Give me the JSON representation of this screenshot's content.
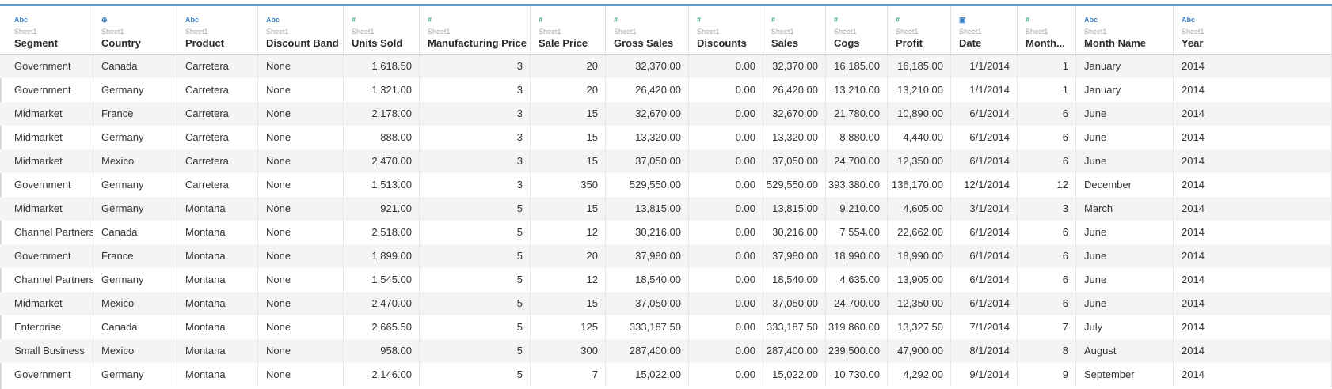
{
  "columns": [
    {
      "type": "abc",
      "icon": "abc-type-icon",
      "symbol": "Abc",
      "source": "Sheet1",
      "name": "Segment",
      "align": "l"
    },
    {
      "type": "geo",
      "icon": "globe-icon",
      "symbol": "⊕",
      "source": "Sheet1",
      "name": "Country",
      "align": "l"
    },
    {
      "type": "abc",
      "icon": "abc-type-icon",
      "symbol": "Abc",
      "source": "Sheet1",
      "name": "Product",
      "align": "l"
    },
    {
      "type": "abc",
      "icon": "abc-type-icon",
      "symbol": "Abc",
      "source": "Sheet1",
      "name": "Discount Band",
      "align": "l"
    },
    {
      "type": "num",
      "icon": "number-type-icon",
      "symbol": "#",
      "source": "Sheet1",
      "name": "Units Sold",
      "align": "r"
    },
    {
      "type": "num",
      "icon": "number-type-icon",
      "symbol": "#",
      "source": "Sheet1",
      "name": "Manufacturing Price",
      "align": "r"
    },
    {
      "type": "num",
      "icon": "number-type-icon",
      "symbol": "#",
      "source": "Sheet1",
      "name": "Sale Price",
      "align": "r"
    },
    {
      "type": "num",
      "icon": "number-type-icon",
      "symbol": "#",
      "source": "Sheet1",
      "name": "Gross Sales",
      "align": "r"
    },
    {
      "type": "num",
      "icon": "number-type-icon",
      "symbol": "#",
      "source": "Sheet1",
      "name": "Discounts",
      "align": "r"
    },
    {
      "type": "num",
      "icon": "number-type-icon",
      "symbol": "#",
      "source": "Sheet1",
      "name": "Sales",
      "align": "r"
    },
    {
      "type": "num",
      "icon": "number-type-icon",
      "symbol": "#",
      "source": "Sheet1",
      "name": "Cogs",
      "align": "r"
    },
    {
      "type": "num",
      "icon": "number-type-icon",
      "symbol": "#",
      "source": "Sheet1",
      "name": "Profit",
      "align": "r"
    },
    {
      "type": "date",
      "icon": "calendar-icon",
      "symbol": "▣",
      "source": "Sheet1",
      "name": "Date",
      "align": "r"
    },
    {
      "type": "num",
      "icon": "number-type-icon",
      "symbol": "#",
      "source": "Sheet1",
      "name": "Month...",
      "align": "r"
    },
    {
      "type": "abc",
      "icon": "abc-type-icon",
      "symbol": "Abc",
      "source": "Sheet1",
      "name": "Month Name",
      "align": "l"
    },
    {
      "type": "abc",
      "icon": "abc-type-icon",
      "symbol": "Abc",
      "source": "Sheet1",
      "name": "Year",
      "align": "l"
    }
  ],
  "rows": [
    [
      "Government",
      "Canada",
      "Carretera",
      "None",
      "1,618.50",
      "3",
      "20",
      "32,370.00",
      "0.00",
      "32,370.00",
      "16,185.00",
      "16,185.00",
      "1/1/2014",
      "1",
      "January",
      "2014"
    ],
    [
      "Government",
      "Germany",
      "Carretera",
      "None",
      "1,321.00",
      "3",
      "20",
      "26,420.00",
      "0.00",
      "26,420.00",
      "13,210.00",
      "13,210.00",
      "1/1/2014",
      "1",
      "January",
      "2014"
    ],
    [
      "Midmarket",
      "France",
      "Carretera",
      "None",
      "2,178.00",
      "3",
      "15",
      "32,670.00",
      "0.00",
      "32,670.00",
      "21,780.00",
      "10,890.00",
      "6/1/2014",
      "6",
      "June",
      "2014"
    ],
    [
      "Midmarket",
      "Germany",
      "Carretera",
      "None",
      "888.00",
      "3",
      "15",
      "13,320.00",
      "0.00",
      "13,320.00",
      "8,880.00",
      "4,440.00",
      "6/1/2014",
      "6",
      "June",
      "2014"
    ],
    [
      "Midmarket",
      "Mexico",
      "Carretera",
      "None",
      "2,470.00",
      "3",
      "15",
      "37,050.00",
      "0.00",
      "37,050.00",
      "24,700.00",
      "12,350.00",
      "6/1/2014",
      "6",
      "June",
      "2014"
    ],
    [
      "Government",
      "Germany",
      "Carretera",
      "None",
      "1,513.00",
      "3",
      "350",
      "529,550.00",
      "0.00",
      "529,550.00",
      "393,380.00",
      "136,170.00",
      "12/1/2014",
      "12",
      "December",
      "2014"
    ],
    [
      "Midmarket",
      "Germany",
      "Montana",
      "None",
      "921.00",
      "5",
      "15",
      "13,815.00",
      "0.00",
      "13,815.00",
      "9,210.00",
      "4,605.00",
      "3/1/2014",
      "3",
      "March",
      "2014"
    ],
    [
      "Channel Partners",
      "Canada",
      "Montana",
      "None",
      "2,518.00",
      "5",
      "12",
      "30,216.00",
      "0.00",
      "30,216.00",
      "7,554.00",
      "22,662.00",
      "6/1/2014",
      "6",
      "June",
      "2014"
    ],
    [
      "Government",
      "France",
      "Montana",
      "None",
      "1,899.00",
      "5",
      "20",
      "37,980.00",
      "0.00",
      "37,980.00",
      "18,990.00",
      "18,990.00",
      "6/1/2014",
      "6",
      "June",
      "2014"
    ],
    [
      "Channel Partners",
      "Germany",
      "Montana",
      "None",
      "1,545.00",
      "5",
      "12",
      "18,540.00",
      "0.00",
      "18,540.00",
      "4,635.00",
      "13,905.00",
      "6/1/2014",
      "6",
      "June",
      "2014"
    ],
    [
      "Midmarket",
      "Mexico",
      "Montana",
      "None",
      "2,470.00",
      "5",
      "15",
      "37,050.00",
      "0.00",
      "37,050.00",
      "24,700.00",
      "12,350.00",
      "6/1/2014",
      "6",
      "June",
      "2014"
    ],
    [
      "Enterprise",
      "Canada",
      "Montana",
      "None",
      "2,665.50",
      "5",
      "125",
      "333,187.50",
      "0.00",
      "333,187.50",
      "319,860.00",
      "13,327.50",
      "7/1/2014",
      "7",
      "July",
      "2014"
    ],
    [
      "Small Business",
      "Mexico",
      "Montana",
      "None",
      "958.00",
      "5",
      "300",
      "287,400.00",
      "0.00",
      "287,400.00",
      "239,500.00",
      "47,900.00",
      "8/1/2014",
      "8",
      "August",
      "2014"
    ],
    [
      "Government",
      "Germany",
      "Montana",
      "None",
      "2,146.00",
      "5",
      "7",
      "15,022.00",
      "0.00",
      "15,022.00",
      "10,730.00",
      "4,292.00",
      "9/1/2014",
      "9",
      "September",
      "2014"
    ]
  ],
  "colors": {
    "accent_bar": "#5b9ed3",
    "number_icon": "#3fa87a",
    "text_icon": "#3a7fc1",
    "alt_row": "#f4f4f4"
  }
}
